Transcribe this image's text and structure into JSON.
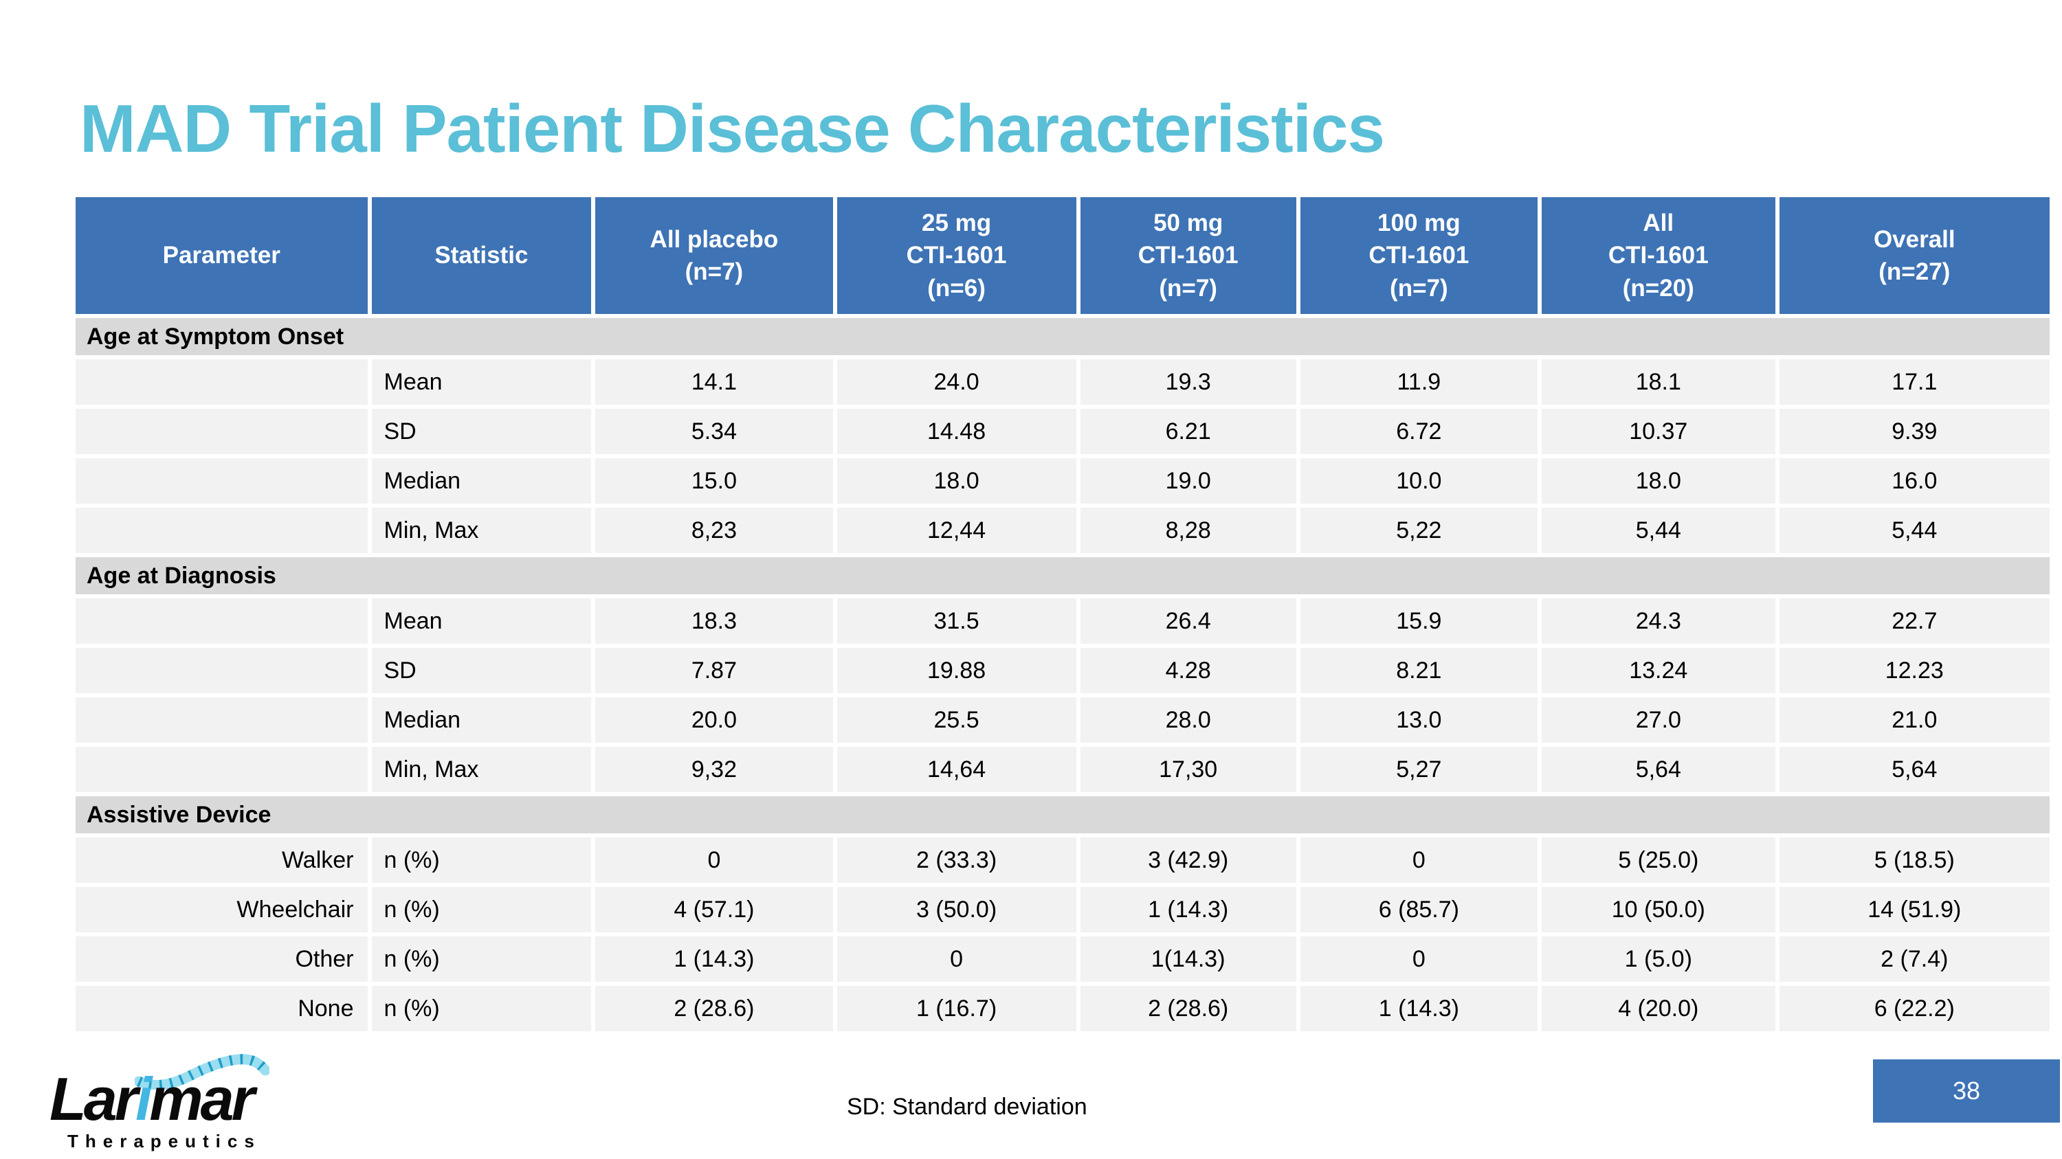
{
  "slide": {
    "title": "MAD Trial Patient Disease Characteristics",
    "footnote": "SD: Standard deviation",
    "page_number": "38"
  },
  "logo": {
    "text_prefix": "Lar",
    "text_accent": "i",
    "text_suffix": "mar",
    "tagline": "Therapeutics",
    "coil_icon": "helix-coil-icon"
  },
  "colors": {
    "title_text": "#5ABFD7",
    "table_header_bg": "#3E73B5",
    "table_header_text": "#FFFFFF",
    "section_row_bg": "#D9D9D9",
    "data_row_bg": "#F2F2F2",
    "page_badge_bg": "#3E73B5",
    "logo_accent": "#43B7E2"
  },
  "table": {
    "columns": [
      "Parameter",
      "Statistic",
      "All placebo\n(n=7)",
      "25 mg\nCTI-1601\n(n=6)",
      "50 mg\nCTI-1601\n(n=7)",
      "100 mg\nCTI-1601\n(n=7)",
      "All\nCTI-1601\n(n=20)",
      "Overall\n(n=27)"
    ],
    "sections": [
      {
        "label": "Age at Symptom Onset",
        "rows": [
          {
            "parameter": "",
            "statistic": "Mean",
            "values": [
              "14.1",
              "24.0",
              "19.3",
              "11.9",
              "18.1",
              "17.1"
            ]
          },
          {
            "parameter": "",
            "statistic": "SD",
            "values": [
              "5.34",
              "14.48",
              "6.21",
              "6.72",
              "10.37",
              "9.39"
            ]
          },
          {
            "parameter": "",
            "statistic": "Median",
            "values": [
              "15.0",
              "18.0",
              "19.0",
              "10.0",
              "18.0",
              "16.0"
            ]
          },
          {
            "parameter": "",
            "statistic": "Min, Max",
            "values": [
              "8,23",
              "12,44",
              "8,28",
              "5,22",
              "5,44",
              "5,44"
            ]
          }
        ]
      },
      {
        "label": "Age at Diagnosis",
        "rows": [
          {
            "parameter": "",
            "statistic": "Mean",
            "values": [
              "18.3",
              "31.5",
              "26.4",
              "15.9",
              "24.3",
              "22.7"
            ]
          },
          {
            "parameter": "",
            "statistic": "SD",
            "values": [
              "7.87",
              "19.88",
              "4.28",
              "8.21",
              "13.24",
              "12.23"
            ]
          },
          {
            "parameter": "",
            "statistic": "Median",
            "values": [
              "20.0",
              "25.5",
              "28.0",
              "13.0",
              "27.0",
              "21.0"
            ]
          },
          {
            "parameter": "",
            "statistic": "Min, Max",
            "values": [
              "9,32",
              "14,64",
              "17,30",
              "5,27",
              "5,64",
              "5,64"
            ]
          }
        ]
      },
      {
        "label": "Assistive Device",
        "rows": [
          {
            "parameter": "Walker",
            "statistic": "n (%)",
            "values": [
              "0",
              "2 (33.3)",
              "3 (42.9)",
              "0",
              "5 (25.0)",
              "5 (18.5)"
            ]
          },
          {
            "parameter": "Wheelchair",
            "statistic": "n (%)",
            "values": [
              "4 (57.1)",
              "3 (50.0)",
              "1 (14.3)",
              "6 (85.7)",
              "10 (50.0)",
              "14 (51.9)"
            ]
          },
          {
            "parameter": "Other",
            "statistic": "n (%)",
            "values": [
              "1 (14.3)",
              "0",
              "1(14.3)",
              "0",
              "1 (5.0)",
              "2 (7.4)"
            ]
          },
          {
            "parameter": "None",
            "statistic": "n (%)",
            "values": [
              "2 (28.6)",
              "1 (16.7)",
              "2 (28.6)",
              "1 (14.3)",
              "4 (20.0)",
              "6 (22.2)"
            ]
          }
        ]
      }
    ]
  }
}
